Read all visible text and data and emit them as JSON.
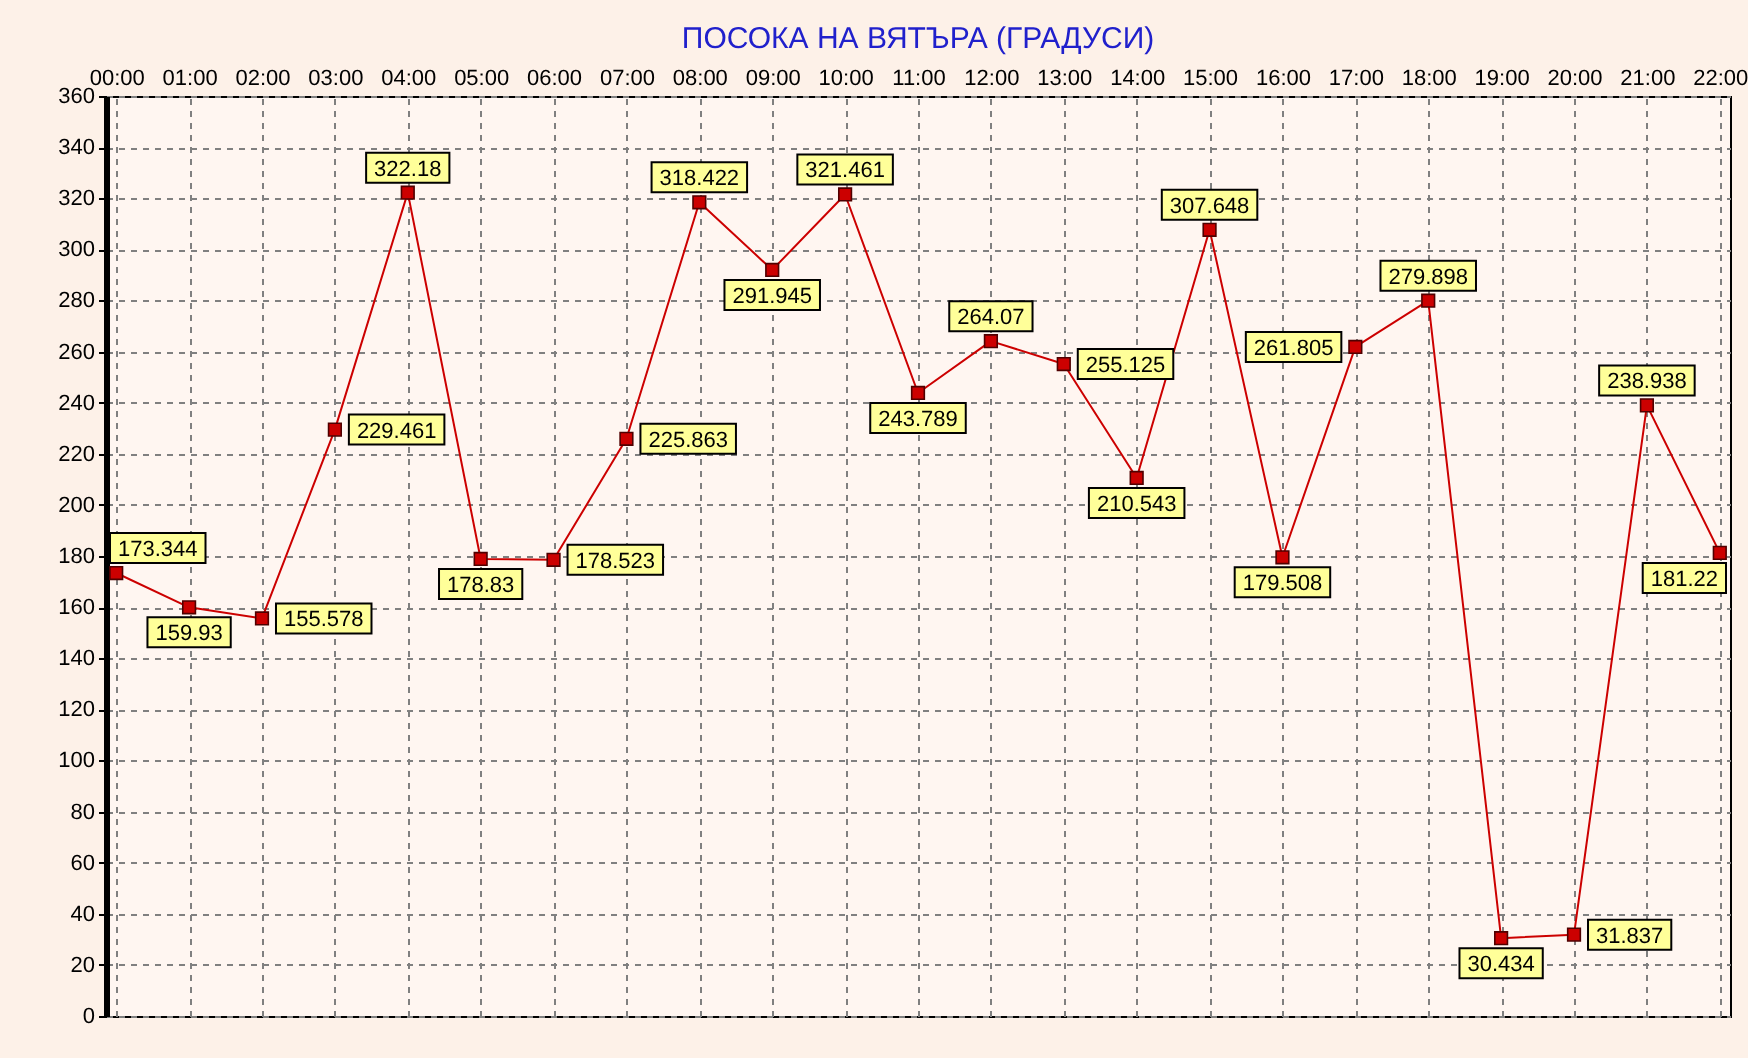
{
  "chart_data": {
    "type": "line",
    "title": "ПОСОКА НА ВЯТЪРА   (ГРАДУСИ)",
    "categories": [
      "00:00",
      "01:00",
      "02:00",
      "03:00",
      "04:00",
      "05:00",
      "06:00",
      "07:00",
      "08:00",
      "09:00",
      "10:00",
      "11:00",
      "12:00",
      "13:00",
      "14:00",
      "15:00",
      "16:00",
      "17:00",
      "18:00",
      "19:00",
      "20:00",
      "21:00",
      "22:00"
    ],
    "values": [
      173.344,
      159.93,
      155.578,
      229.461,
      322.18,
      178.83,
      178.523,
      225.863,
      318.422,
      291.945,
      321.461,
      243.789,
      264.07,
      255.125,
      210.543,
      307.648,
      179.508,
      261.805,
      279.898,
      30.434,
      31.837,
      238.938,
      181.22
    ],
    "color": "#cc0000",
    "ylim": [
      0,
      360
    ],
    "yticks": [
      0,
      20,
      40,
      60,
      80,
      100,
      120,
      140,
      160,
      180,
      200,
      220,
      240,
      260,
      280,
      300,
      320,
      340,
      360
    ],
    "grid": true,
    "marker": "square",
    "data_labels": true
  }
}
